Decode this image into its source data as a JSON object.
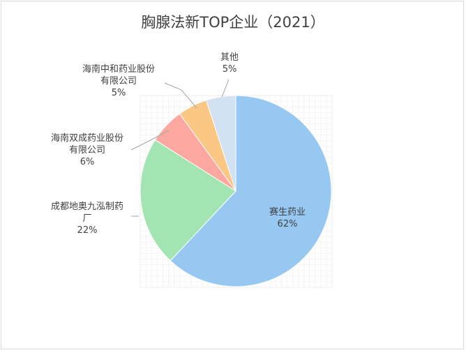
{
  "chart_data": {
    "type": "pie",
    "title": "胸腺法新TOP企业（2021）",
    "slices": [
      {
        "label_lines": [
          "赛生药业"
        ],
        "value": 62,
        "value_label": "62%",
        "color": "#96c8f2"
      },
      {
        "label_lines": [
          "成都地奥九泓制药",
          "厂"
        ],
        "value": 22,
        "value_label": "22%",
        "color": "#a3e4b3"
      },
      {
        "label_lines": [
          "海南双成药业股份",
          "有限公司"
        ],
        "value": 6,
        "value_label": "6%",
        "color": "#fca7a0"
      },
      {
        "label_lines": [
          "海南中和药业股份",
          "有限公司"
        ],
        "value": 5,
        "value_label": "5%",
        "color": "#fbc784"
      },
      {
        "label_lines": [
          "其他"
        ],
        "value": 5,
        "value_label": "5%",
        "color": "#d3e2f2"
      }
    ]
  }
}
